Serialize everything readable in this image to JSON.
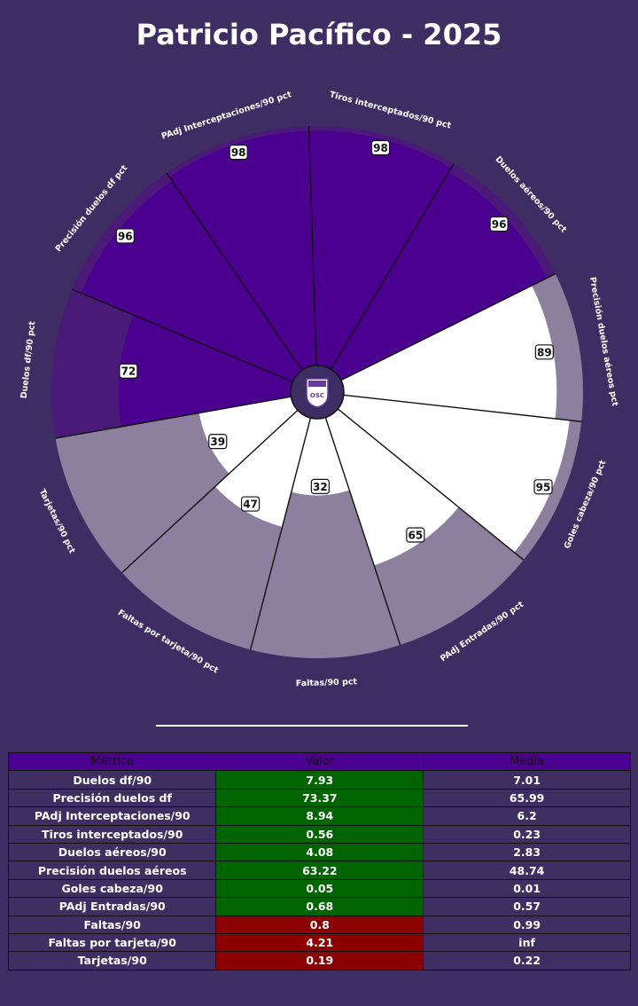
{
  "title": "Patricio Pacífico - 2025",
  "colors": {
    "background": "#3e2d62",
    "group_a_fill": "#4b0090",
    "group_a_bg": "#4a1a78",
    "group_b_fill": "#ffffff",
    "group_b_bg": "#8d809f",
    "table_header": "#4b0090",
    "good": "#006400",
    "bad": "#8b0000"
  },
  "logo": {
    "name": "club-crest-icon",
    "letters": "OSC"
  },
  "chart_data": {
    "type": "radar-bar",
    "range": [
      0,
      100
    ],
    "params": [
      "Duelos df/90 pct",
      "Precisión duelos df pct",
      "PAdj Interceptaciones/90 pct",
      "Tiros interceptados/90 pct",
      "Duelos aéreos/90 pct",
      "Precisión duelos aéreos pct",
      "Goles cabeza/90 pct",
      "PAdj Entradas/90 pct",
      "Faltas/90 pct",
      "Faltas por tarjeta/90 pct",
      "Tarjetas/90 pct"
    ],
    "values": [
      72,
      96,
      98,
      98,
      96,
      89,
      95,
      65,
      32,
      47,
      39
    ],
    "groups": [
      "a",
      "a",
      "a",
      "a",
      "a",
      "b",
      "b",
      "b",
      "b",
      "b",
      "b"
    ]
  },
  "table": {
    "headers": [
      "Métrica",
      "Valor",
      "Media"
    ],
    "rows": [
      {
        "metric": "Duelos df/90",
        "value": "7.93",
        "mean": "7.01",
        "status": "good"
      },
      {
        "metric": "Precisión duelos df",
        "value": "73.37",
        "mean": "65.99",
        "status": "good"
      },
      {
        "metric": "PAdj Interceptaciones/90",
        "value": "8.94",
        "mean": "6.2",
        "status": "good"
      },
      {
        "metric": "Tiros interceptados/90",
        "value": "0.56",
        "mean": "0.23",
        "status": "good"
      },
      {
        "metric": "Duelos aéreos/90",
        "value": "4.08",
        "mean": "2.83",
        "status": "good"
      },
      {
        "metric": "Precisión duelos aéreos",
        "value": "63.22",
        "mean": "48.74",
        "status": "good"
      },
      {
        "metric": "Goles cabeza/90",
        "value": "0.05",
        "mean": "0.01",
        "status": "good"
      },
      {
        "metric": "PAdj Entradas/90",
        "value": "0.68",
        "mean": "0.57",
        "status": "good"
      },
      {
        "metric": "Faltas/90",
        "value": "0.8",
        "mean": "0.99",
        "status": "bad"
      },
      {
        "metric": "Faltas por tarjeta/90",
        "value": "4.21",
        "mean": "inf",
        "status": "bad"
      },
      {
        "metric": "Tarjetas/90",
        "value": "0.19",
        "mean": "0.22",
        "status": "bad"
      }
    ]
  }
}
